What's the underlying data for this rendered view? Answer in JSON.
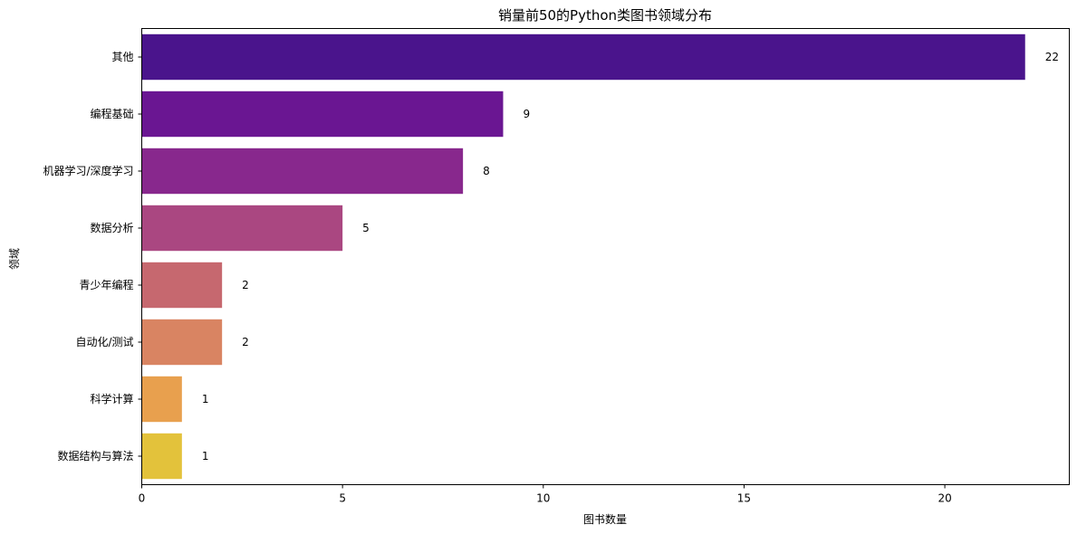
{
  "chart_data": {
    "type": "bar",
    "orientation": "horizontal",
    "title": "销量前50的Python类图书领域分布",
    "xlabel": "图书数量",
    "ylabel": "领域",
    "categories": [
      "其他",
      "编程基础",
      "机器学习/深度学习",
      "数据分析",
      "青少年编程",
      "自动化/测试",
      "科学计算",
      "数据结构与算法"
    ],
    "values": [
      22,
      9,
      8,
      5,
      2,
      2,
      1,
      1
    ],
    "value_labels": [
      "22",
      "9",
      "8",
      "5",
      "2",
      "2",
      "1",
      "1"
    ],
    "colors": [
      "#4a148c",
      "#6a1692",
      "#88288d",
      "#aa4781",
      "#c6686f",
      "#d98462",
      "#e8a04e",
      "#e3c23b"
    ],
    "xlim": [
      0,
      23.1
    ],
    "xticks": [
      0,
      5,
      10,
      15,
      20
    ],
    "xtick_labels": [
      "0",
      "5",
      "10",
      "15",
      "20"
    ],
    "grid": false,
    "legend": "none"
  }
}
